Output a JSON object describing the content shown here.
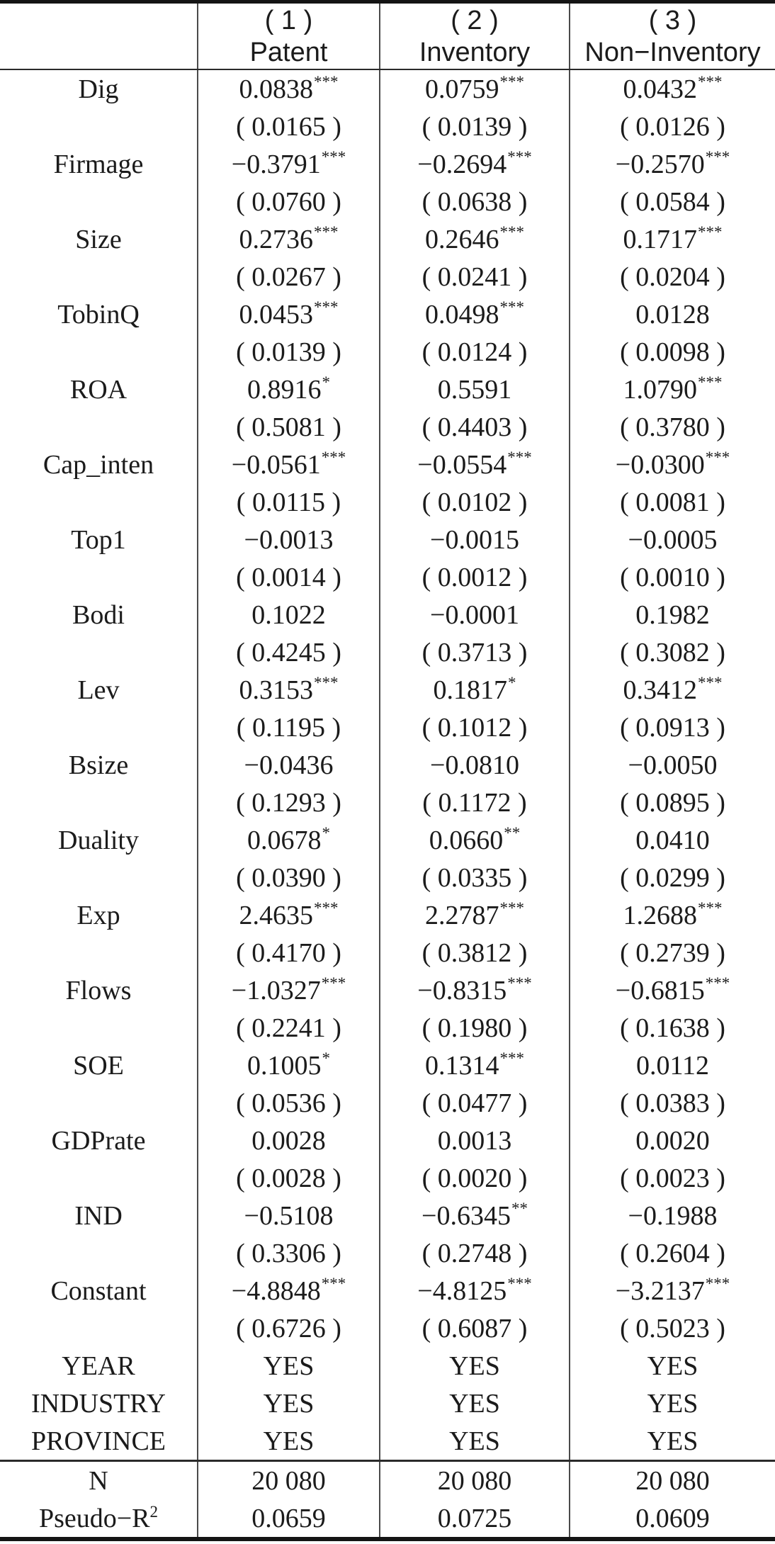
{
  "page": {
    "background_color": "#ffffff",
    "text_color": "#1b1b1b",
    "rule_color": "#141414",
    "grid_line_color": "#4a4a4a"
  },
  "table": {
    "columns": [
      {
        "number": "( 1 )",
        "label": "Patent"
      },
      {
        "number": "( 2 )",
        "label": "Inventory"
      },
      {
        "number": "( 3 )",
        "label": "Non−Inventory"
      }
    ],
    "variables": [
      {
        "label": "Dig",
        "cells": [
          {
            "v": "0.0838",
            "s": "***"
          },
          {
            "v": "0.0759",
            "s": "***"
          },
          {
            "v": "0.0432",
            "s": "***"
          }
        ],
        "se": [
          "( 0.0165 )",
          "( 0.0139 )",
          "( 0.0126 )"
        ]
      },
      {
        "label": "Firmage",
        "cells": [
          {
            "v": "−0.3791",
            "s": "***"
          },
          {
            "v": "−0.2694",
            "s": "***"
          },
          {
            "v": "−0.2570",
            "s": "***"
          }
        ],
        "se": [
          "( 0.0760 )",
          "( 0.0638 )",
          "( 0.0584 )"
        ]
      },
      {
        "label": "Size",
        "cells": [
          {
            "v": "0.2736",
            "s": "***"
          },
          {
            "v": "0.2646",
            "s": "***"
          },
          {
            "v": "0.1717",
            "s": "***"
          }
        ],
        "se": [
          "( 0.0267 )",
          "( 0.0241 )",
          "( 0.0204 )"
        ]
      },
      {
        "label": "TobinQ",
        "cells": [
          {
            "v": "0.0453",
            "s": "***"
          },
          {
            "v": "0.0498",
            "s": "***"
          },
          {
            "v": "0.0128",
            "s": ""
          }
        ],
        "se": [
          "( 0.0139 )",
          "( 0.0124 )",
          "( 0.0098 )"
        ]
      },
      {
        "label": "ROA",
        "cells": [
          {
            "v": "0.8916",
            "s": "*"
          },
          {
            "v": "0.5591",
            "s": ""
          },
          {
            "v": "1.0790",
            "s": "***"
          }
        ],
        "se": [
          "( 0.5081 )",
          "( 0.4403 )",
          "( 0.3780 )"
        ]
      },
      {
        "label": "Cap_inten",
        "cells": [
          {
            "v": "−0.0561",
            "s": "***"
          },
          {
            "v": "−0.0554",
            "s": "***"
          },
          {
            "v": "−0.0300",
            "s": "***"
          }
        ],
        "se": [
          "( 0.0115 )",
          "( 0.0102 )",
          "( 0.0081 )"
        ]
      },
      {
        "label": "Top1",
        "cells": [
          {
            "v": "−0.0013",
            "s": ""
          },
          {
            "v": "−0.0015",
            "s": ""
          },
          {
            "v": "−0.0005",
            "s": ""
          }
        ],
        "se": [
          "( 0.0014 )",
          "( 0.0012 )",
          "( 0.0010 )"
        ]
      },
      {
        "label": "Bodi",
        "cells": [
          {
            "v": "0.1022",
            "s": ""
          },
          {
            "v": "−0.0001",
            "s": ""
          },
          {
            "v": "0.1982",
            "s": ""
          }
        ],
        "se": [
          "( 0.4245 )",
          "( 0.3713 )",
          "( 0.3082 )"
        ]
      },
      {
        "label": "Lev",
        "cells": [
          {
            "v": "0.3153",
            "s": "***"
          },
          {
            "v": "0.1817",
            "s": "*"
          },
          {
            "v": "0.3412",
            "s": "***"
          }
        ],
        "se": [
          "( 0.1195 )",
          "( 0.1012 )",
          "( 0.0913 )"
        ]
      },
      {
        "label": "Bsize",
        "cells": [
          {
            "v": "−0.0436",
            "s": ""
          },
          {
            "v": "−0.0810",
            "s": ""
          },
          {
            "v": "−0.0050",
            "s": ""
          }
        ],
        "se": [
          "( 0.1293 )",
          "( 0.1172 )",
          "( 0.0895 )"
        ]
      },
      {
        "label": "Duality",
        "cells": [
          {
            "v": "0.0678",
            "s": "*"
          },
          {
            "v": "0.0660",
            "s": "**"
          },
          {
            "v": "0.0410",
            "s": ""
          }
        ],
        "se": [
          "( 0.0390 )",
          "( 0.0335 )",
          "( 0.0299 )"
        ]
      },
      {
        "label": "Exp",
        "cells": [
          {
            "v": "2.4635",
            "s": "***"
          },
          {
            "v": "2.2787",
            "s": "***"
          },
          {
            "v": "1.2688",
            "s": "***"
          }
        ],
        "se": [
          "( 0.4170 )",
          "( 0.3812 )",
          "( 0.2739 )"
        ]
      },
      {
        "label": "Flows",
        "cells": [
          {
            "v": "−1.0327",
            "s": "***"
          },
          {
            "v": "−0.8315",
            "s": "***"
          },
          {
            "v": "−0.6815",
            "s": "***"
          }
        ],
        "se": [
          "( 0.2241 )",
          "( 0.1980 )",
          "( 0.1638 )"
        ]
      },
      {
        "label": "SOE",
        "cells": [
          {
            "v": "0.1005",
            "s": "*"
          },
          {
            "v": "0.1314",
            "s": "***"
          },
          {
            "v": "0.0112",
            "s": ""
          }
        ],
        "se": [
          "( 0.0536 )",
          "( 0.0477 )",
          "( 0.0383 )"
        ]
      },
      {
        "label": "GDPrate",
        "cells": [
          {
            "v": "0.0028",
            "s": ""
          },
          {
            "v": "0.0013",
            "s": ""
          },
          {
            "v": "0.0020",
            "s": ""
          }
        ],
        "se": [
          "( 0.0028 )",
          "( 0.0020 )",
          "( 0.0023 )"
        ]
      },
      {
        "label": "IND",
        "cells": [
          {
            "v": "−0.5108",
            "s": ""
          },
          {
            "v": "−0.6345",
            "s": "**"
          },
          {
            "v": "−0.1988",
            "s": ""
          }
        ],
        "se": [
          "( 0.3306 )",
          "( 0.2748 )",
          "( 0.2604 )"
        ]
      },
      {
        "label": "Constant",
        "cells": [
          {
            "v": "−4.8848",
            "s": "***"
          },
          {
            "v": "−4.8125",
            "s": "***"
          },
          {
            "v": "−3.2137",
            "s": "***"
          }
        ],
        "se": [
          "( 0.6726 )",
          "( 0.6087 )",
          "( 0.5023 )"
        ]
      }
    ],
    "fixed_effects": [
      {
        "label": "YEAR",
        "values": [
          "YES",
          "YES",
          "YES"
        ]
      },
      {
        "label": "INDUSTRY",
        "values": [
          "YES",
          "YES",
          "YES"
        ]
      },
      {
        "label": "PROVINCE",
        "values": [
          "YES",
          "YES",
          "YES"
        ]
      }
    ],
    "stats": [
      {
        "label": "N",
        "label_sup": "",
        "values": [
          "20 080",
          "20 080",
          "20 080"
        ]
      },
      {
        "label": "Pseudo−R",
        "label_sup": "2",
        "values": [
          "0.0659",
          "0.0725",
          "0.0609"
        ]
      }
    ]
  }
}
